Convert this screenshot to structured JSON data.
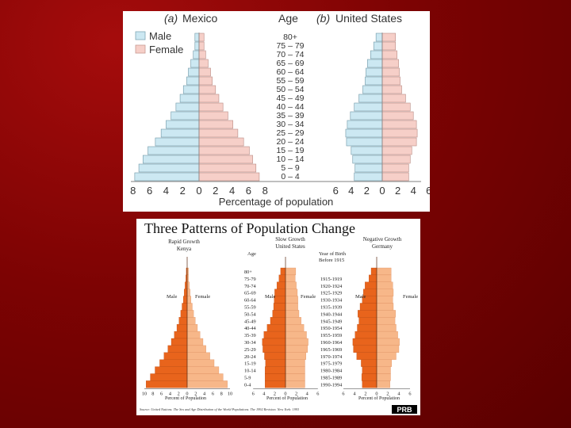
{
  "slide_background": "#7d0303",
  "chart_data": [
    {
      "type": "bar",
      "subtype": "population-pyramid-pair",
      "title": "",
      "panels": [
        {
          "letter": "(a)",
          "name": "Mexico"
        },
        {
          "letter": "(b)",
          "name": "United States"
        }
      ],
      "age_header": "Age",
      "age_groups": [
        "80+",
        "75 – 79",
        "70 – 74",
        "65 – 69",
        "60 – 64",
        "55 – 59",
        "50 – 54",
        "45 – 49",
        "40 – 44",
        "35 – 39",
        "30 – 34",
        "25 – 29",
        "20 – 24",
        "15 – 19",
        "10 – 14",
        "5 – 9",
        "0 – 4"
      ],
      "legend": [
        {
          "label": "Male",
          "color": "#cce8f2"
        },
        {
          "label": "Female",
          "color": "#f6cfc8"
        }
      ],
      "xlabel": "Percentage of population",
      "mexico_ticks": [
        "8",
        "6",
        "4",
        "2",
        "0",
        "2",
        "4",
        "6",
        "8"
      ],
      "us_ticks": [
        "6",
        "4",
        "2",
        "0",
        "2",
        "4",
        "6"
      ],
      "mexico": {
        "male": [
          0.5,
          0.5,
          0.7,
          1.0,
          1.3,
          1.5,
          1.9,
          2.3,
          2.8,
          3.4,
          4.0,
          4.6,
          5.3,
          6.2,
          6.8,
          7.3,
          7.8
        ],
        "female": [
          0.6,
          0.6,
          0.8,
          1.1,
          1.4,
          1.6,
          2.0,
          2.4,
          2.9,
          3.5,
          4.1,
          4.7,
          5.4,
          6.1,
          6.5,
          6.9,
          7.3
        ]
      },
      "united_states": {
        "male": [
          0.8,
          1.1,
          1.5,
          1.9,
          2.1,
          2.2,
          2.5,
          3.0,
          3.6,
          4.1,
          4.5,
          4.7,
          4.6,
          4.0,
          3.8,
          3.5,
          3.6
        ],
        "female": [
          1.7,
          1.7,
          1.9,
          2.1,
          2.2,
          2.3,
          2.5,
          3.0,
          3.6,
          4.0,
          4.4,
          4.5,
          4.4,
          3.8,
          3.6,
          3.4,
          3.4
        ]
      },
      "xlim": [
        -8,
        8
      ]
    },
    {
      "type": "bar",
      "subtype": "population-pyramid-triple",
      "title": "Three Patterns of Population Change",
      "panels": [
        {
          "name": "Rapid Growth",
          "country": "Kenya"
        },
        {
          "name": "Slow Growth",
          "country": "United States"
        },
        {
          "name": "Negative Growth",
          "country": "Germany"
        }
      ],
      "age_header": "Age",
      "age_groups": [
        "80+",
        "75-79",
        "70-74",
        "65-69",
        "60-64",
        "55-59",
        "50-54",
        "45-49",
        "40-44",
        "35-39",
        "30-34",
        "25-29",
        "20-24",
        "15-19",
        "10-14",
        "5-9",
        "0-4"
      ],
      "birth_header": [
        "Year of Birth",
        "Before 1915"
      ],
      "birth_years": [
        "1915-1919",
        "1920-1924",
        "1925-1929",
        "1930-1934",
        "1935-1939",
        "1940-1944",
        "1945-1949",
        "1950-1954",
        "1955-1959",
        "1960-1964",
        "1965-1969",
        "1970-1974",
        "1975-1979",
        "1980-1984",
        "1985-1989",
        "1990-1994"
      ],
      "male_label": "Male",
      "female_label": "Female",
      "xlabel": "Percent of Population",
      "kenya_ticks": [
        "10",
        "8",
        "6",
        "4",
        "2",
        "0",
        "2",
        "4",
        "6",
        "8",
        "10"
      ],
      "us_ticks": [
        "6",
        "4",
        "2",
        "0",
        "2",
        "4",
        "6"
      ],
      "germany_ticks": [
        "6",
        "4",
        "2",
        "0",
        "2",
        "4",
        "6"
      ],
      "colors": {
        "male": "#e8641c",
        "female": "#f7b789",
        "midline": "#5a2a10"
      },
      "kenya": {
        "male": [
          0.2,
          0.3,
          0.5,
          0.7,
          0.9,
          1.2,
          1.5,
          1.9,
          2.4,
          3.0,
          3.7,
          4.5,
          5.4,
          6.4,
          7.5,
          8.6,
          9.6
        ],
        "female": [
          0.3,
          0.3,
          0.5,
          0.7,
          0.9,
          1.2,
          1.5,
          1.9,
          2.4,
          3.0,
          3.7,
          4.4,
          5.3,
          6.3,
          7.4,
          8.4,
          9.4
        ]
      },
      "united_states": {
        "male": [
          0.9,
          1.2,
          1.6,
          2.0,
          2.1,
          2.2,
          2.4,
          2.8,
          3.4,
          4.0,
          4.3,
          4.2,
          3.9,
          3.7,
          3.8,
          3.8,
          3.8
        ],
        "female": [
          1.9,
          1.8,
          2.0,
          2.2,
          2.3,
          2.3,
          2.5,
          2.9,
          3.4,
          3.9,
          4.2,
          4.1,
          3.8,
          3.6,
          3.6,
          3.6,
          3.6
        ]
      },
      "germany": {
        "male": [
          1.0,
          1.4,
          2.1,
          2.4,
          2.6,
          3.0,
          3.4,
          3.2,
          3.5,
          3.9,
          4.3,
          4.2,
          3.6,
          2.8,
          2.6,
          2.7,
          2.6
        ],
        "female": [
          2.6,
          2.6,
          2.9,
          3.0,
          2.9,
          3.0,
          3.4,
          3.3,
          3.5,
          3.8,
          4.1,
          4.0,
          3.5,
          2.7,
          2.5,
          2.5,
          2.4
        ]
      },
      "source": "Source: United Nations. The Sex and Age Distribution of the World Populations. The 1992 Revision. New York: 1993",
      "publisher_logo": "PRB"
    }
  ]
}
